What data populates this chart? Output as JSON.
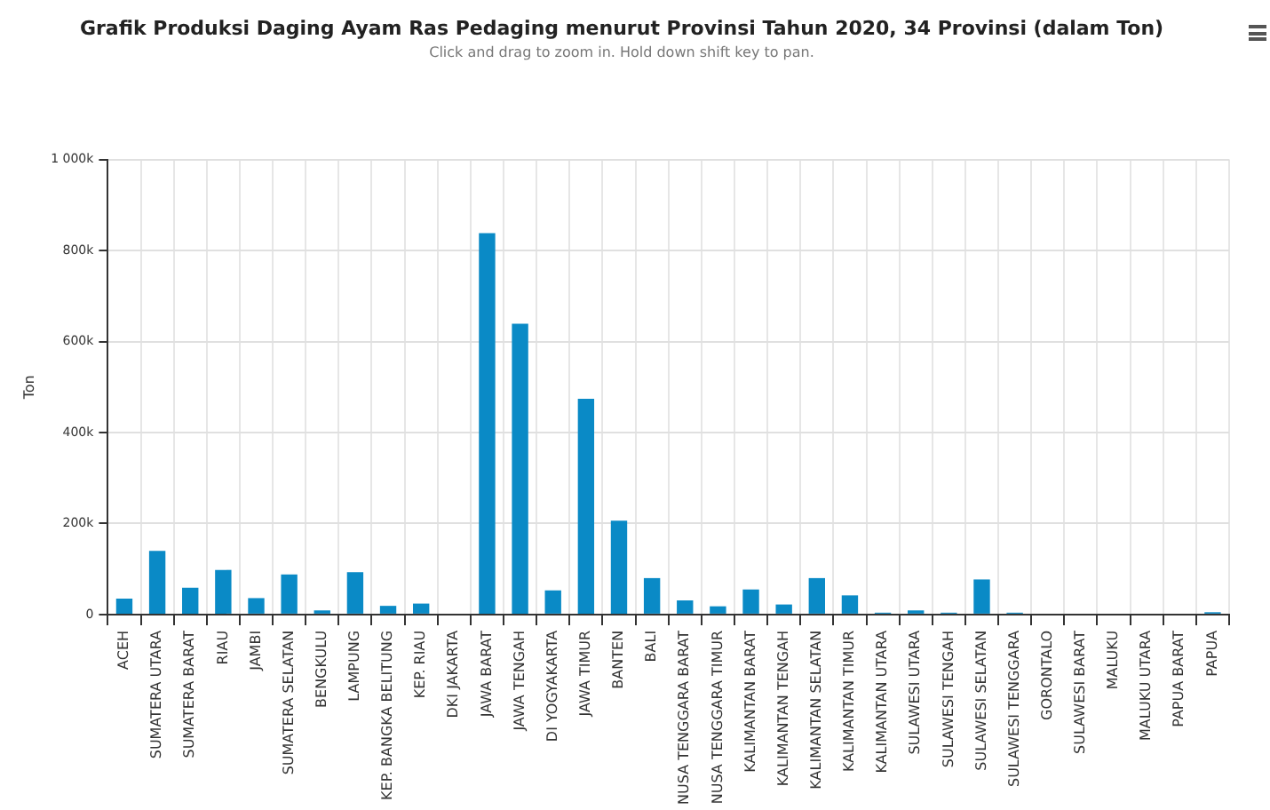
{
  "chart_data": {
    "type": "bar",
    "title": "Grafik Produksi Daging Ayam Ras Pedaging menurut Provinsi Tahun 2020, 34 Provinsi (dalam Ton)",
    "subtitle": "Click and drag to zoom in. Hold down shift key to pan.",
    "ylabel": "Ton",
    "categories": [
      "ACEH",
      "SUMATERA UTARA",
      "SUMATERA BARAT",
      "RIAU",
      "JAMBI",
      "SUMATERA SELATAN",
      "BENGKULU",
      "LAMPUNG",
      "KEP. BANGKA BELITUNG",
      "KEP. RIAU",
      "DKI JAKARTA",
      "JAWA BARAT",
      "JAWA TENGAH",
      "DI YOGYAKARTA",
      "JAWA TIMUR",
      "BANTEN",
      "BALI",
      "NUSA TENGGARA BARAT",
      "NUSA TENGGARA TIMUR",
      "KALIMANTAN BARAT",
      "KALIMANTAN TENGAH",
      "KALIMANTAN SELATAN",
      "KALIMANTAN TIMUR",
      "KALIMANTAN UTARA",
      "SULAWESI UTARA",
      "SULAWESI TENGAH",
      "SULAWESI SELATAN",
      "SULAWESI TENGGARA",
      "GORONTALO",
      "SULAWESI BARAT",
      "MALUKU",
      "MALUKU UTARA",
      "PAPUA BARAT",
      "PAPUA"
    ],
    "values": [
      35000,
      140000,
      59000,
      98000,
      36000,
      88000,
      9000,
      93000,
      19000,
      24000,
      0,
      838000,
      639000,
      53000,
      474000,
      206000,
      80000,
      31000,
      18000,
      55000,
      22000,
      80000,
      42000,
      4000,
      9000,
      4000,
      77000,
      4000,
      0,
      0,
      0,
      0,
      0,
      5000
    ],
    "color": "#0a8ac6",
    "ylim": [
      0,
      1000000
    ],
    "yticks": [
      {
        "value": 0,
        "label": "0"
      },
      {
        "value": 200000,
        "label": "200k"
      },
      {
        "value": 400000,
        "label": "400k"
      },
      {
        "value": 600000,
        "label": "600k"
      },
      {
        "value": 800000,
        "label": "800k"
      },
      {
        "value": 1000000,
        "label": "1 000k"
      }
    ],
    "grid": true,
    "legend": false
  }
}
